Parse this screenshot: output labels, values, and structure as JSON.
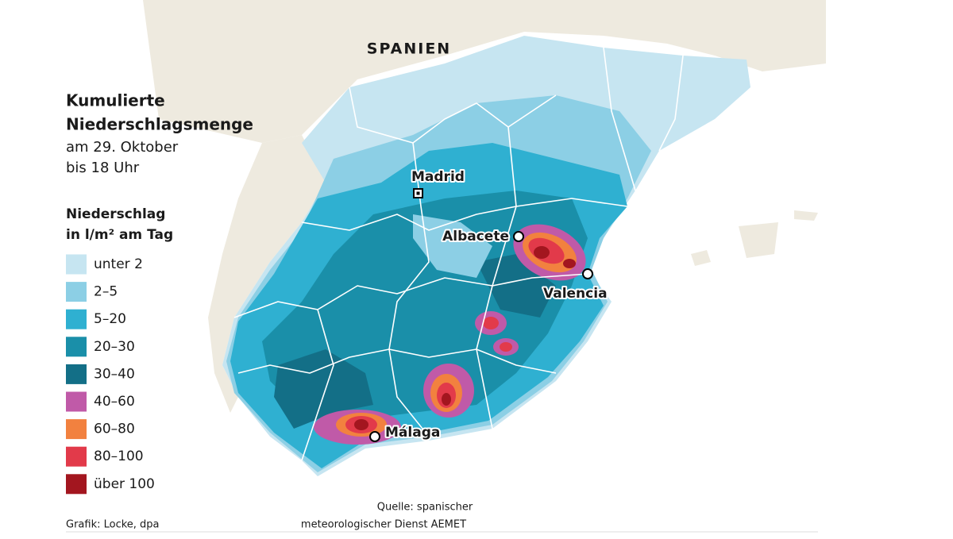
{
  "header": {
    "country": "SPANIEN",
    "title": [
      "Kumulierte",
      "Niederschlagsmenge"
    ],
    "subtitle": [
      "am 29. Oktober",
      "bis 18 Uhr"
    ]
  },
  "legend": {
    "title": [
      "Niederschlag",
      "in l/m² am Tag"
    ],
    "items": [
      {
        "label": "unter 2",
        "color": "#c6e5f1"
      },
      {
        "label": "2–5",
        "color": "#8ccfe5"
      },
      {
        "label": "5–20",
        "color": "#2fb0d1"
      },
      {
        "label": "20–30",
        "color": "#1a8fa9"
      },
      {
        "label": "30–40",
        "color": "#136f87"
      },
      {
        "label": "40–60",
        "color": "#c05aa8"
      },
      {
        "label": "60–80",
        "color": "#f2813f"
      },
      {
        "label": "80–100",
        "color": "#e23a4a"
      },
      {
        "label": "über 100",
        "color": "#a3161f"
      }
    ]
  },
  "cities": [
    "Madrid",
    "Albacete",
    "Valencia",
    "Málaga"
  ],
  "footer": {
    "credit": "Grafik: Locke, dpa",
    "source": [
      "Quelle: spanischer",
      "meteorologischer Dienst AEMET"
    ]
  }
}
